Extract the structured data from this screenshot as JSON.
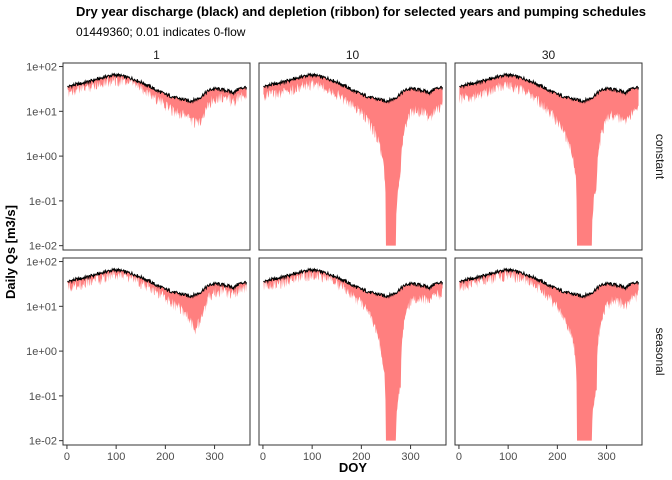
{
  "chart_data": {
    "type": "line",
    "title": "Dry year discharge (black) and depletion (ribbon) for selected years and pumping schedules",
    "subtitle": "01449360; 0.01 indicates 0-flow",
    "xlabel": "DOY",
    "ylabel": "Daily Qs [m3/s]",
    "y_scale": "log10",
    "xlim": [
      -8,
      372
    ],
    "ylim": [
      0.008,
      120
    ],
    "x_ticks": [
      0,
      100,
      200,
      300
    ],
    "x_tick_labels": [
      "0",
      "100",
      "200",
      "300"
    ],
    "y_ticks": [
      0.01,
      0.1,
      1,
      10,
      100
    ],
    "y_tick_labels": [
      "1e-02",
      "1e-01",
      "1e+00",
      "1e+01",
      "1e+02"
    ],
    "col_facets": [
      "1",
      "10",
      "30"
    ],
    "row_facets": [
      "constant",
      "seasonal"
    ],
    "colors": {
      "discharge": "#000000",
      "depletion": "#ff7f7f",
      "panel_border": "#333333"
    },
    "grid": false,
    "legend": "none",
    "discharge": {
      "x": [
        1,
        10,
        20,
        30,
        40,
        50,
        60,
        70,
        80,
        90,
        100,
        110,
        120,
        130,
        140,
        150,
        160,
        170,
        180,
        190,
        200,
        210,
        220,
        230,
        240,
        250,
        260,
        270,
        280,
        290,
        300,
        310,
        320,
        330,
        340,
        345,
        350,
        360,
        365
      ],
      "y": [
        35,
        38,
        40,
        42,
        45,
        48,
        52,
        55,
        60,
        63,
        65,
        62,
        58,
        55,
        50,
        45,
        40,
        35,
        30,
        27,
        24,
        22,
        20,
        19,
        18,
        17,
        18,
        20,
        25,
        30,
        32,
        31,
        30,
        28,
        26,
        30,
        32,
        34,
        35
      ]
    },
    "panels": [
      {
        "col": "1",
        "row": "constant",
        "depletion_lower": [
          35,
          38,
          40,
          42,
          45,
          48,
          52,
          55,
          60,
          63,
          65,
          62,
          58,
          55,
          50,
          43,
          37,
          31,
          26,
          22,
          18,
          15,
          13,
          12,
          11,
          9,
          7,
          8,
          12,
          20,
          26,
          27,
          26,
          24,
          20,
          24,
          27,
          29,
          30
        ]
      },
      {
        "col": "10",
        "row": "constant",
        "depletion_lower": [
          28,
          30,
          31,
          32,
          34,
          36,
          40,
          43,
          48,
          51,
          53,
          50,
          46,
          43,
          38,
          32,
          27,
          22,
          18,
          15,
          12,
          9,
          6,
          4,
          1.5,
          0.01,
          0.01,
          0.01,
          0.5,
          6,
          12,
          14,
          13,
          12,
          9,
          12,
          14,
          16,
          17
        ]
      },
      {
        "col": "30",
        "row": "constant",
        "depletion_lower": [
          24,
          26,
          27,
          28,
          30,
          32,
          36,
          39,
          44,
          47,
          49,
          46,
          42,
          39,
          34,
          28,
          23,
          18,
          14,
          11,
          8,
          5,
          3,
          1.5,
          0.01,
          0.01,
          0.01,
          0.01,
          0.3,
          4,
          9,
          11,
          10,
          9,
          7,
          9,
          11,
          13,
          14
        ]
      },
      {
        "col": "1",
        "row": "seasonal",
        "depletion_lower": [
          35,
          38,
          40,
          42,
          45,
          48,
          52,
          55,
          60,
          63,
          65,
          62,
          58,
          55,
          50,
          44,
          38,
          32,
          27,
          24,
          20,
          17,
          14,
          12,
          9,
          7,
          4,
          6,
          11,
          22,
          28,
          28,
          27,
          25,
          23,
          27,
          30,
          31,
          32
        ]
      },
      {
        "col": "10",
        "row": "seasonal",
        "depletion_lower": [
          35,
          38,
          40,
          42,
          45,
          48,
          52,
          55,
          60,
          63,
          65,
          62,
          58,
          55,
          50,
          43,
          36,
          29,
          23,
          19,
          15,
          11,
          7,
          4,
          1.2,
          0.01,
          0.01,
          0.01,
          0.2,
          8,
          17,
          19,
          19,
          18,
          16,
          20,
          23,
          25,
          26
        ]
      },
      {
        "col": "30",
        "row": "seasonal",
        "depletion_lower": [
          35,
          38,
          40,
          42,
          45,
          48,
          52,
          55,
          60,
          63,
          65,
          62,
          58,
          55,
          50,
          42,
          35,
          28,
          22,
          17,
          12,
          8,
          5,
          2.5,
          0.01,
          0.01,
          0.01,
          0.01,
          0.2,
          6,
          14,
          17,
          17,
          16,
          14,
          17,
          20,
          22,
          23
        ]
      }
    ]
  }
}
